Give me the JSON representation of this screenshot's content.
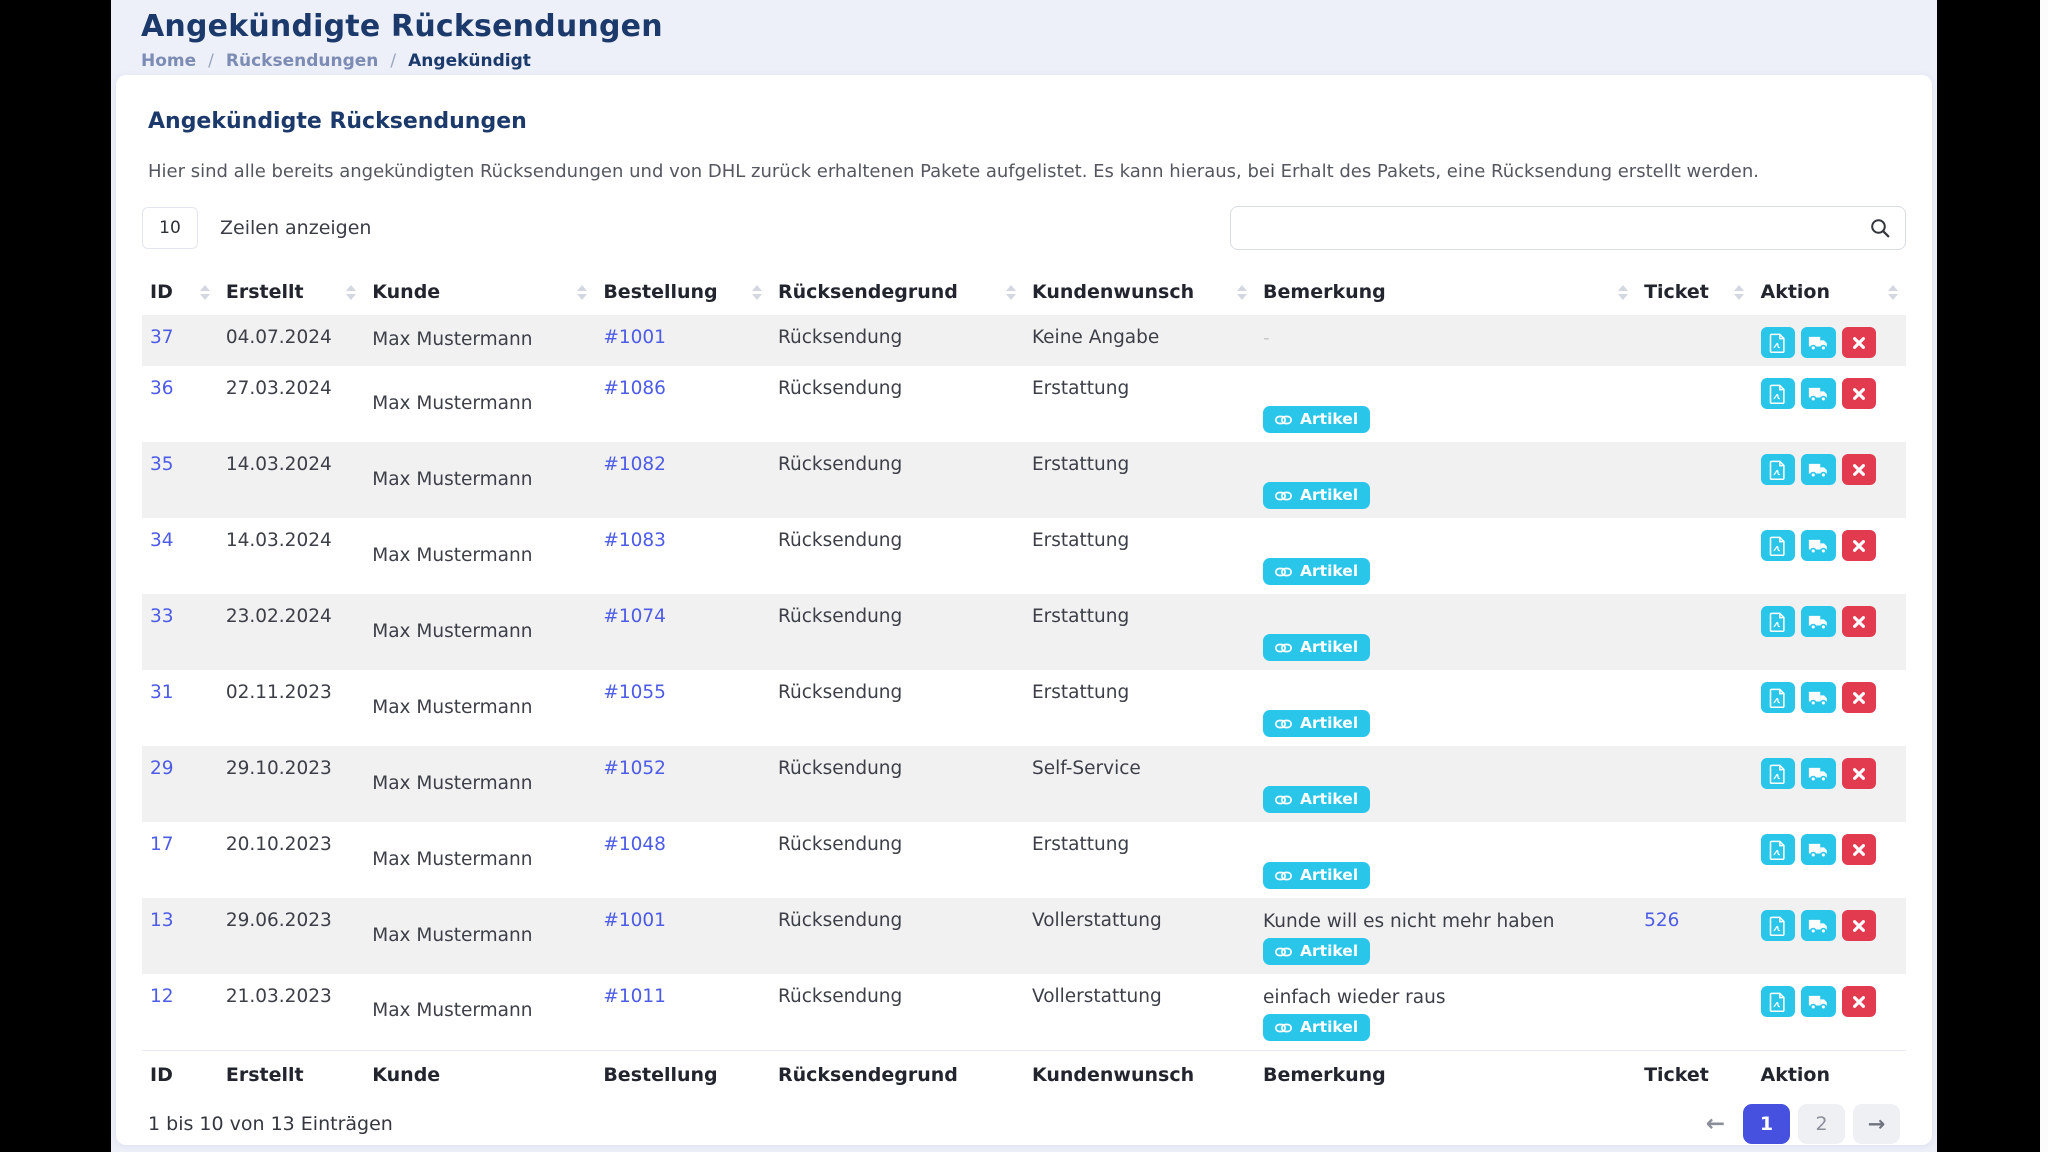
{
  "page": {
    "title": "Angekündigte Rücksendungen",
    "breadcrumb": {
      "separator": "/",
      "items": [
        {
          "label": "Home"
        },
        {
          "label": "Rücksendungen"
        },
        {
          "label": "Angekündigt"
        }
      ]
    }
  },
  "card": {
    "title": "Angekündigte Rücksendungen",
    "description": "Hier sind alle bereits angekündigten Rücksendungen und von DHL zurück erhaltenen Pakete aufgelistet. Es kann hieraus, bei Erhalt des Pakets, eine Rücksendung erstellt werden.",
    "rows_per_page": "10",
    "rows_label": "Zeilen anzeigen",
    "search_value": ""
  },
  "table": {
    "columns": [
      {
        "key": "id",
        "label": "ID"
      },
      {
        "key": "erstellt",
        "label": "Erstellt"
      },
      {
        "key": "kunde",
        "label": "Kunde"
      },
      {
        "key": "bestellung",
        "label": "Bestellung"
      },
      {
        "key": "grund",
        "label": "Rücksendegrund"
      },
      {
        "key": "wunsch",
        "label": "Kundenwunsch"
      },
      {
        "key": "bemerkung",
        "label": "Bemerkung"
      },
      {
        "key": "ticket",
        "label": "Ticket"
      },
      {
        "key": "aktion",
        "label": "Aktion"
      }
    ],
    "badge_label": "Artikel",
    "actions": [
      {
        "name": "pdf-button",
        "icon": "file-pdf-icon",
        "style": "cyan"
      },
      {
        "name": "shipping-button",
        "icon": "truck-icon",
        "style": "cyan"
      },
      {
        "name": "delete-button",
        "icon": "x-icon",
        "style": "red"
      }
    ],
    "rows": [
      {
        "id": "37",
        "created": "04.07.2024",
        "customer": "Max Mustermann",
        "order": "#1001",
        "reason": "Rücksendung",
        "wish": "Keine Angabe",
        "note": "-",
        "note_muted": true,
        "artikel": false,
        "ticket": "",
        "compact": true
      },
      {
        "id": "36",
        "created": "27.03.2024",
        "customer": "Max Mustermann",
        "order": "#1086",
        "reason": "Rücksendung",
        "wish": "Erstattung",
        "note": "",
        "note_muted": false,
        "artikel": true,
        "ticket": "",
        "compact": false
      },
      {
        "id": "35",
        "created": "14.03.2024",
        "customer": "Max Mustermann",
        "order": "#1082",
        "reason": "Rücksendung",
        "wish": "Erstattung",
        "note": "",
        "note_muted": false,
        "artikel": true,
        "ticket": "",
        "compact": false
      },
      {
        "id": "34",
        "created": "14.03.2024",
        "customer": "Max Mustermann",
        "order": "#1083",
        "reason": "Rücksendung",
        "wish": "Erstattung",
        "note": "",
        "note_muted": false,
        "artikel": true,
        "ticket": "",
        "compact": false
      },
      {
        "id": "33",
        "created": "23.02.2024",
        "customer": "Max Mustermann",
        "order": "#1074",
        "reason": "Rücksendung",
        "wish": "Erstattung",
        "note": "",
        "note_muted": false,
        "artikel": true,
        "ticket": "",
        "compact": false
      },
      {
        "id": "31",
        "created": "02.11.2023",
        "customer": "Max Mustermann",
        "order": "#1055",
        "reason": "Rücksendung",
        "wish": "Erstattung",
        "note": "",
        "note_muted": false,
        "artikel": true,
        "ticket": "",
        "compact": false
      },
      {
        "id": "29",
        "created": "29.10.2023",
        "customer": "Max Mustermann",
        "order": "#1052",
        "reason": "Rücksendung",
        "wish": "Self-Service",
        "note": "",
        "note_muted": false,
        "artikel": true,
        "ticket": "",
        "compact": false
      },
      {
        "id": "17",
        "created": "20.10.2023",
        "customer": "Max Mustermann",
        "order": "#1048",
        "reason": "Rücksendung",
        "wish": "Erstattung",
        "note": "",
        "note_muted": false,
        "artikel": true,
        "ticket": "",
        "compact": false
      },
      {
        "id": "13",
        "created": "29.06.2023",
        "customer": "Max Mustermann",
        "order": "#1001",
        "reason": "Rücksendung",
        "wish": "Vollerstattung",
        "note": "Kunde will es nicht mehr haben",
        "note_muted": false,
        "artikel": true,
        "ticket": "526",
        "compact": false
      },
      {
        "id": "12",
        "created": "21.03.2023",
        "customer": "Max Mustermann",
        "order": "#1011",
        "reason": "Rücksendung",
        "wish": "Vollerstattung",
        "note": "einfach wieder raus",
        "note_muted": false,
        "artikel": true,
        "ticket": "",
        "compact": false
      }
    ]
  },
  "footer": {
    "info": "1 bis 10 von 13 Einträgen",
    "pagination": {
      "prev": "←",
      "next": "→",
      "pages": [
        {
          "label": "1",
          "active": true
        },
        {
          "label": "2",
          "active": false
        }
      ]
    }
  },
  "colors": {
    "accent_navy": "#1b3a6b",
    "link_blue": "#4d5ce5",
    "cyan": "#2ac6ea",
    "red": "#e23b50",
    "pagination_active": "#4651e0",
    "page_bg": "#edf0f9",
    "stripe": "#f1f1f2"
  }
}
